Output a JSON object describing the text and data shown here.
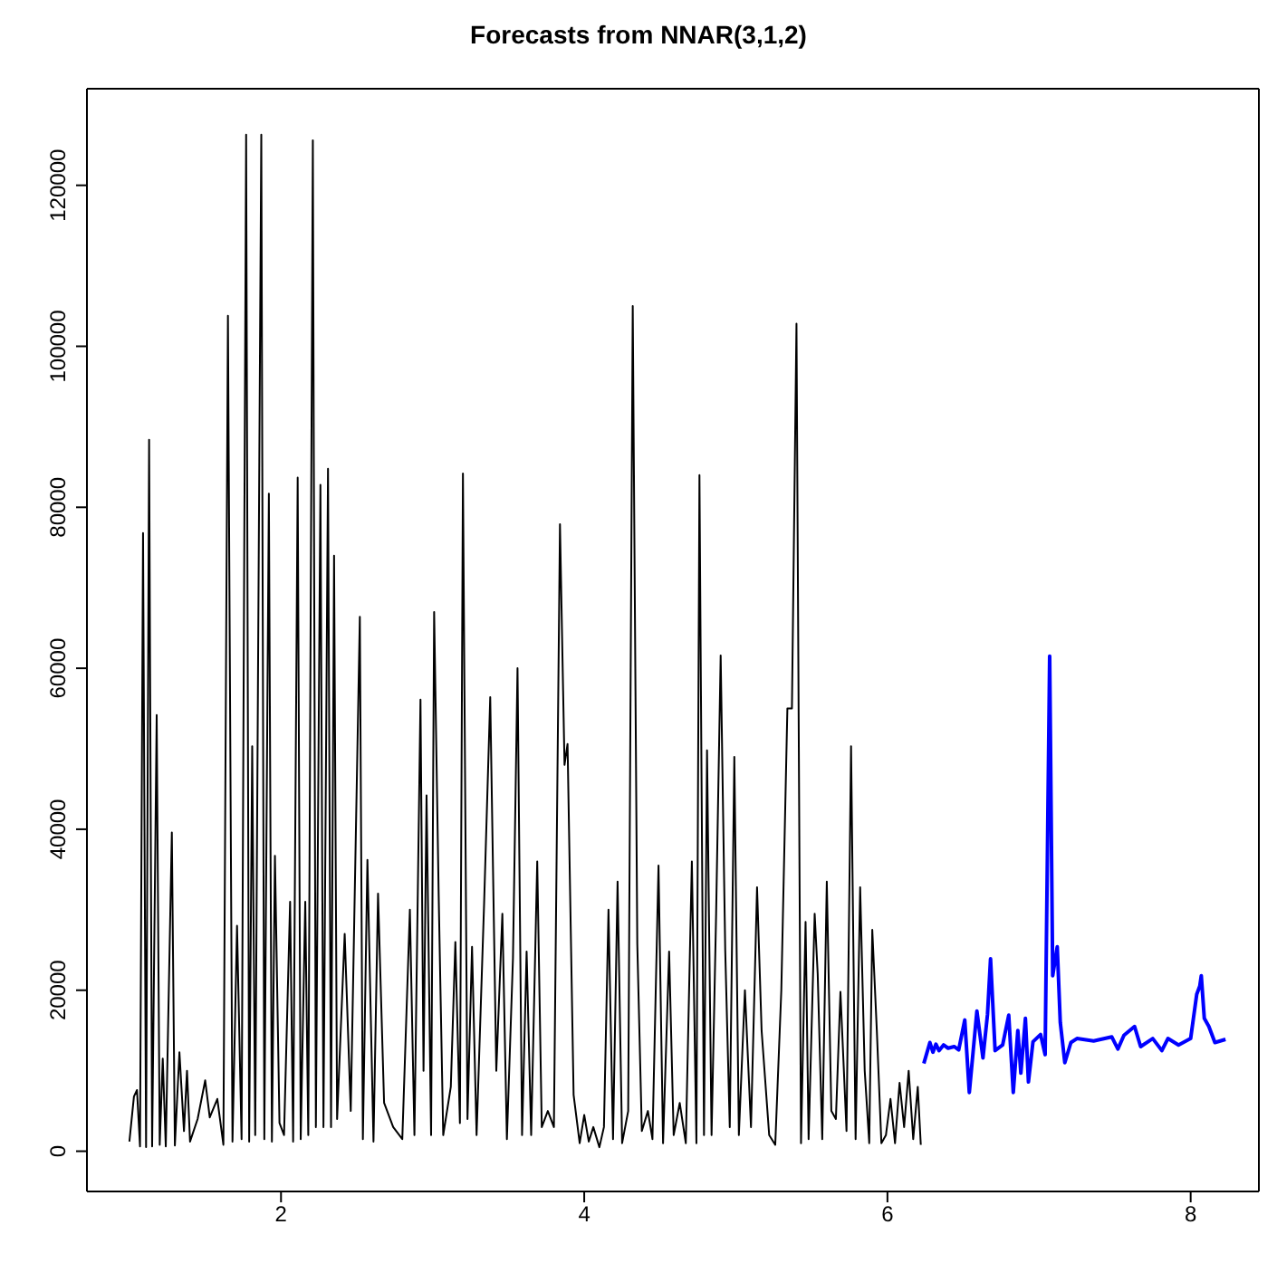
{
  "chart_data": {
    "type": "line",
    "title": "Forecasts from NNAR(3,1,2)",
    "xlim": [
      0.72,
      8.45
    ],
    "xticks": [
      2,
      4,
      6,
      8
    ],
    "ylim": [
      -5000,
      132000
    ],
    "yticks": [
      0,
      20000,
      40000,
      60000,
      80000,
      100000,
      120000
    ],
    "marker": "none",
    "line_style": "solid",
    "series": [
      {
        "color": "#000000",
        "x": [
          1.0,
          1.03,
          1.05,
          1.07,
          1.09,
          1.11,
          1.13,
          1.15,
          1.18,
          1.2,
          1.22,
          1.24,
          1.28,
          1.3,
          1.33,
          1.36,
          1.38,
          1.4,
          1.45,
          1.5,
          1.53,
          1.58,
          1.62,
          1.65,
          1.68,
          1.71,
          1.74,
          1.77,
          1.79,
          1.81,
          1.83,
          1.87,
          1.89,
          1.92,
          1.94,
          1.96,
          1.99,
          2.02,
          2.06,
          2.08,
          2.11,
          2.13,
          2.16,
          2.18,
          2.21,
          2.23,
          2.26,
          2.28,
          2.31,
          2.33,
          2.35,
          2.37,
          2.42,
          2.46,
          2.52,
          2.54,
          2.57,
          2.61,
          2.64,
          2.68,
          2.74,
          2.8,
          2.85,
          2.88,
          2.92,
          2.94,
          2.96,
          2.99,
          3.01,
          3.04,
          3.07,
          3.12,
          3.15,
          3.18,
          3.2,
          3.23,
          3.26,
          3.29,
          3.34,
          3.38,
          3.42,
          3.46,
          3.49,
          3.53,
          3.56,
          3.59,
          3.62,
          3.65,
          3.69,
          3.72,
          3.76,
          3.8,
          3.84,
          3.87,
          3.89,
          3.93,
          3.97,
          4.0,
          4.03,
          4.06,
          4.1,
          4.13,
          4.16,
          4.19,
          4.22,
          4.25,
          4.29,
          4.32,
          4.35,
          4.38,
          4.42,
          4.45,
          4.49,
          4.52,
          4.56,
          4.59,
          4.63,
          4.67,
          4.71,
          4.74,
          4.76,
          4.79,
          4.81,
          4.84,
          4.87,
          4.9,
          4.93,
          4.96,
          4.99,
          5.02,
          5.06,
          5.1,
          5.14,
          5.17,
          5.22,
          5.26,
          5.3,
          5.34,
          5.37,
          5.4,
          5.43,
          5.46,
          5.48,
          5.52,
          5.54,
          5.57,
          5.6,
          5.63,
          5.66,
          5.69,
          5.73,
          5.76,
          5.79,
          5.82,
          5.85,
          5.88,
          5.9,
          5.93,
          5.96,
          5.99,
          6.02,
          6.05,
          6.08,
          6.11,
          6.14,
          6.17,
          6.2,
          6.22
        ],
        "values": [
          1200,
          6800,
          7600,
          600,
          76800,
          500,
          88400,
          600,
          54200,
          800,
          11500,
          600,
          39600,
          700,
          12300,
          2500,
          10000,
          1200,
          4000,
          8800,
          4200,
          6500,
          800,
          103800,
          1200,
          28000,
          1500,
          126300,
          1200,
          50300,
          2000,
          126300,
          1500,
          81700,
          1200,
          36700,
          3500,
          2000,
          31000,
          1200,
          83700,
          1500,
          31000,
          2000,
          125600,
          3000,
          82800,
          3000,
          84800,
          3000,
          74000,
          4000,
          27000,
          5000,
          66400,
          1500,
          36200,
          1200,
          32000,
          6000,
          3000,
          1500,
          30000,
          2000,
          56100,
          10000,
          44200,
          2000,
          67000,
          31800,
          2000,
          8000,
          26000,
          3500,
          84200,
          4000,
          25400,
          2000,
          31000,
          56400,
          10000,
          29500,
          1500,
          24000,
          60000,
          2000,
          24800,
          2000,
          36000,
          3000,
          5000,
          3000,
          77900,
          48000,
          50600,
          7000,
          1000,
          4500,
          1200,
          3000,
          500,
          3000,
          30000,
          1500,
          33500,
          1000,
          5000,
          105000,
          25800,
          2500,
          5000,
          1500,
          35500,
          1000,
          24800,
          2000,
          6000,
          1000,
          36000,
          1000,
          84000,
          2000,
          49800,
          2000,
          29500,
          61600,
          25000,
          3000,
          49000,
          2000,
          20000,
          3000,
          32800,
          15000,
          2000,
          800,
          20000,
          55000,
          55000,
          102800,
          1000,
          28500,
          1500,
          29500,
          22000,
          1500,
          33500,
          5000,
          4000,
          19800,
          2500,
          50300,
          1500,
          32800,
          10000,
          1000,
          27500,
          15000,
          1000,
          2000,
          6500,
          1000,
          8500,
          3000,
          10000,
          1500,
          8000,
          800
        ]
      },
      {
        "color": "#0000ff",
        "x": [
          6.24,
          6.28,
          6.3,
          6.32,
          6.34,
          6.37,
          6.4,
          6.44,
          6.47,
          6.51,
          6.54,
          6.59,
          6.63,
          6.66,
          6.68,
          6.71,
          6.76,
          6.8,
          6.83,
          6.86,
          6.88,
          6.91,
          6.93,
          6.96,
          7.01,
          7.04,
          7.07,
          7.09,
          7.12,
          7.14,
          7.17,
          7.21,
          7.25,
          7.36,
          7.48,
          7.52,
          7.56,
          7.63,
          7.67,
          7.75,
          7.81,
          7.85,
          7.92,
          8.0,
          8.04,
          8.06,
          8.07,
          8.09,
          8.12,
          8.16,
          8.23
        ],
        "values": [
          10900,
          13500,
          12300,
          13300,
          12500,
          13200,
          12800,
          13000,
          12600,
          16300,
          7300,
          17400,
          11600,
          17000,
          23900,
          12500,
          13200,
          16900,
          7300,
          15000,
          9700,
          16500,
          8600,
          13600,
          14500,
          12000,
          61500,
          21800,
          25400,
          16000,
          11000,
          13500,
          14000,
          13700,
          14200,
          12700,
          14400,
          15500,
          13000,
          14000,
          12500,
          14000,
          13200,
          14000,
          19500,
          20500,
          21800,
          16500,
          15500,
          13500,
          13900
        ]
      }
    ]
  }
}
